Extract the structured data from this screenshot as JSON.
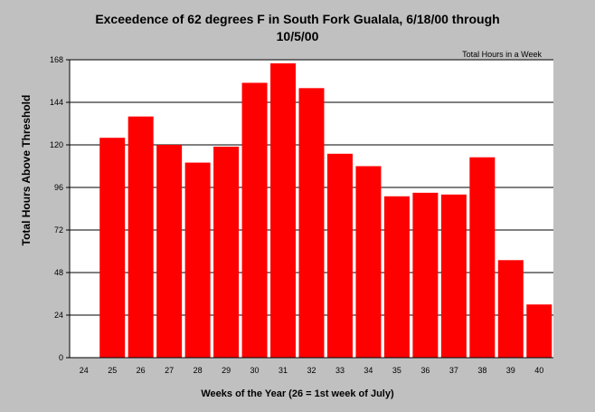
{
  "chart_data": {
    "type": "bar",
    "title_line1": "Exceedence of 62 degrees F in South Fork Gualala, 6/18/00 through",
    "title_line2": "10/5/00",
    "xlabel": "Weeks of the Year (26 = 1st week of July)",
    "ylabel": "Total Hours Above Threshold",
    "legend": "Total Hours in a Week",
    "categories": [
      "24",
      "25",
      "26",
      "27",
      "28",
      "29",
      "30",
      "31",
      "32",
      "33",
      "34",
      "35",
      "36",
      "37",
      "38",
      "39",
      "40"
    ],
    "values": [
      null,
      124,
      136,
      120,
      110,
      119,
      155,
      166,
      152,
      115,
      108,
      91,
      93,
      92,
      113,
      55,
      30
    ],
    "yticks": [
      0,
      24,
      48,
      72,
      96,
      120,
      144,
      168
    ],
    "ylim": [
      0,
      168
    ],
    "grid": true,
    "bar_color": "#ff0000",
    "background_color": "#c0c0c0",
    "plot_background_color": "#ffffff"
  }
}
